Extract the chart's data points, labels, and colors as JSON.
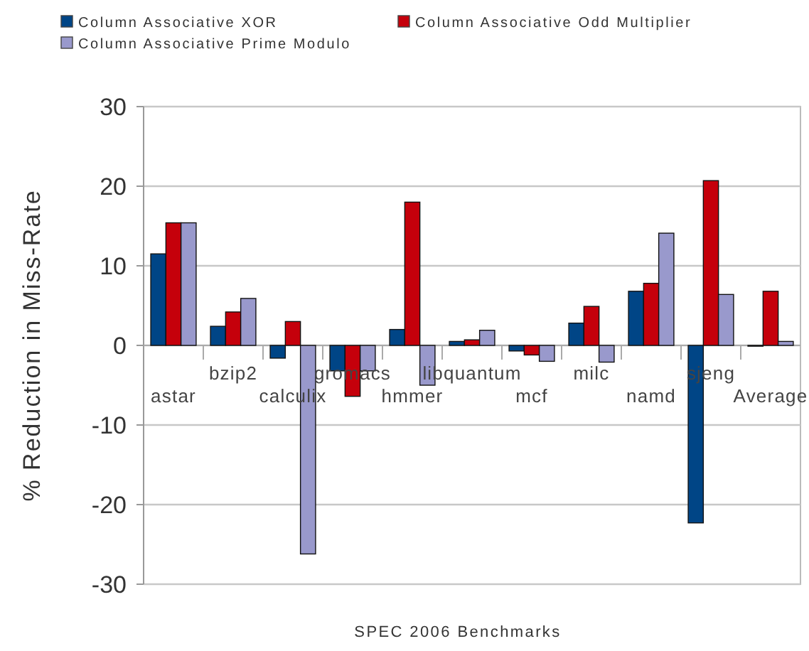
{
  "chart_data": {
    "type": "bar",
    "xlabel": "SPEC 2006 Benchmarks",
    "ylabel": "% Reduction in Miss-Rate",
    "categories": [
      "astar",
      "bzip2",
      "calculix",
      "gromacs",
      "hmmer",
      "libquantum",
      "mcf",
      "milc",
      "namd",
      "sjeng",
      "Average"
    ],
    "series": [
      {
        "name": "Column Associative XOR",
        "color": "#004586",
        "values": [
          11.5,
          2.4,
          -1.6,
          -3.2,
          2.0,
          0.5,
          -0.7,
          2.8,
          6.8,
          -22.3,
          -0.1
        ]
      },
      {
        "name": "Column Associative Odd Multiplier",
        "color": "#c5000b",
        "values": [
          15.4,
          4.2,
          3.0,
          -6.4,
          18.0,
          0.7,
          -1.2,
          4.9,
          7.8,
          20.7,
          6.8
        ]
      },
      {
        "name": "Column Associative Prime Modulo",
        "color": "#9999cc",
        "values": [
          15.4,
          5.9,
          -26.2,
          -3.2,
          -5.0,
          1.9,
          -2.0,
          -2.1,
          14.1,
          6.4,
          0.5
        ]
      }
    ],
    "ylim": [
      -30,
      30
    ],
    "yticks": [
      -30,
      -20,
      -10,
      0,
      10,
      20,
      30
    ],
    "grid": "y",
    "legend": "top"
  }
}
